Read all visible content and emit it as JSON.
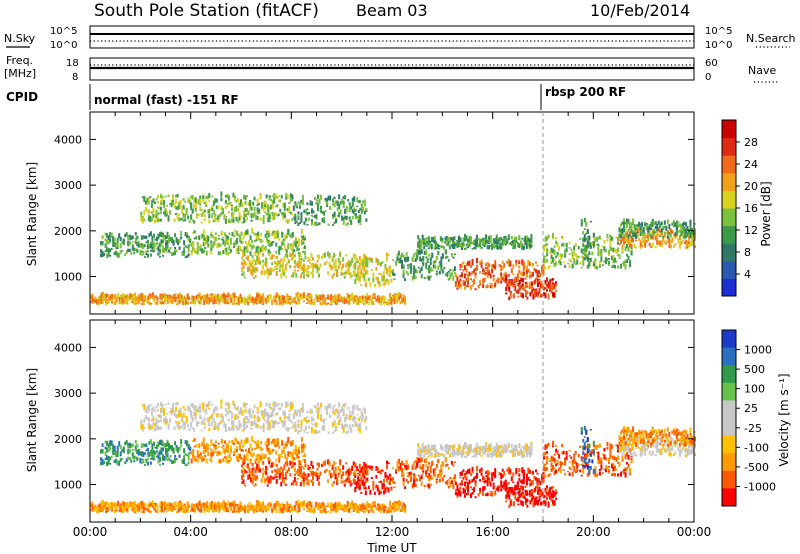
{
  "header": {
    "station": "South Pole Station (fitACF)",
    "beam": "Beam 03",
    "date": "10/Feb/2014"
  },
  "strip_labels": {
    "nsky": "N.Sky",
    "nsky_ticks": [
      "10^5",
      "10^0"
    ],
    "nsearch": "N.Search",
    "nsearch_ticks": [
      "10^5",
      "10^0"
    ],
    "freq_line1": "Freq.",
    "freq_line2": "[MHz]",
    "freq_ticks": [
      "18",
      "8"
    ],
    "nave": "Nave",
    "nave_ticks": [
      "60",
      "0"
    ],
    "cpid": "CPID"
  },
  "cpid_modes": [
    {
      "label": "normal (fast) -151 RF",
      "start_hour": 0
    },
    {
      "label": "rbsp 200 RF",
      "start_hour": 18
    }
  ],
  "colors": {
    "power": [
      "#1a2fd6",
      "#2a5ab0",
      "#2f7a66",
      "#3b9a4a",
      "#7cc03c",
      "#d8d21e",
      "#f2a01a",
      "#f06a18",
      "#e02a14",
      "#cc0000"
    ],
    "velocity": [
      "#ff0000",
      "#ff5a00",
      "#ff9a00",
      "#ffc000",
      "#c8c8c8",
      "#c8c8c8",
      "#66c24a",
      "#2f9a4a",
      "#2a6fc0",
      "#1a3cc8"
    ]
  },
  "chart_data": [
    {
      "type": "heatmap",
      "name": "power",
      "xlabel": "",
      "ylabel": "Slant Range [km]",
      "xlim": [
        "00:00",
        "00:00"
      ],
      "ylim": [
        180,
        4600
      ],
      "yticks": [
        "1000",
        "2000",
        "3000",
        "4000"
      ],
      "colorbar": {
        "label": "Power [dB]",
        "ticks": [
          "4",
          "8",
          "12",
          "16",
          "20",
          "24",
          "28"
        ],
        "range": [
          0,
          30
        ]
      },
      "data_note_hours": [
        0,
        24
      ]
    },
    {
      "type": "heatmap",
      "name": "velocity",
      "xlabel": "Time UT",
      "ylabel": "Slant Range [km]",
      "xticks": [
        "00:00",
        "04:00",
        "08:00",
        "12:00",
        "16:00",
        "20:00",
        "00:00"
      ],
      "ylim": [
        180,
        4600
      ],
      "yticks": [
        "1000",
        "2000",
        "3000",
        "4000"
      ],
      "colorbar": {
        "label": "Velocity [m s⁻¹]",
        "ticks": [
          "1000",
          "500",
          "100",
          "25",
          "-25",
          "-100",
          "-500",
          "-1000"
        ]
      }
    }
  ]
}
